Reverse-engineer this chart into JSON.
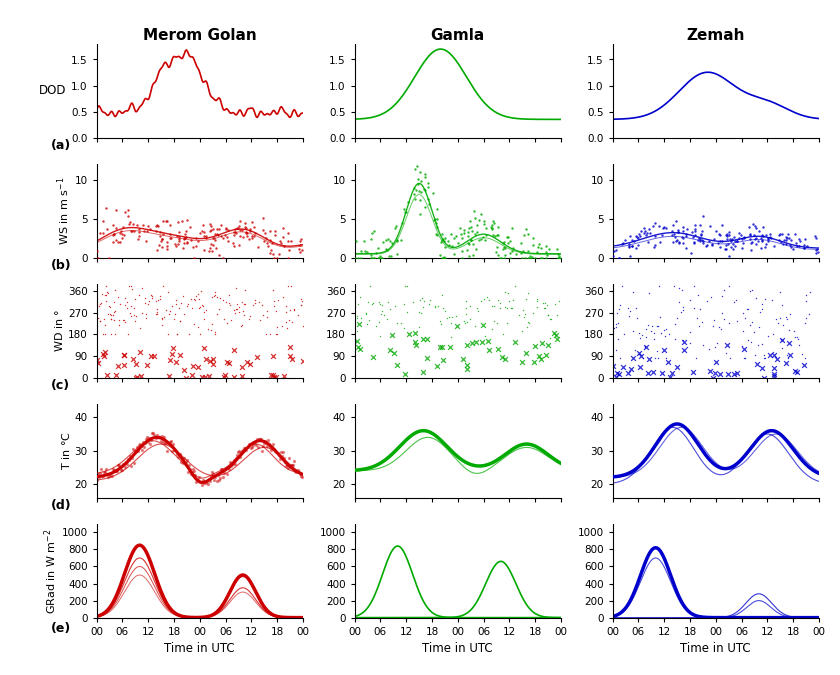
{
  "title_col1": "Merom Golan",
  "title_col2": "Gamla",
  "title_col3": "Zemah",
  "colors_hex": [
    "#cc0000",
    "#00aa00",
    "#0000cc"
  ],
  "row_labels": [
    "(a)",
    "(b)",
    "(c)",
    "(d)",
    "(e)"
  ],
  "ylabel_row0": "DOD",
  "ylabel_row1": "WS in m s$^{-1}$",
  "ylabel_row2": "WD in $\\degree$",
  "ylabel_row3": "T in $\\degree$C",
  "ylabel_row4": "GRad in W m$^{-2}$",
  "xlabel": "Time in UTC",
  "xtick_labels": [
    "00",
    "06",
    "12",
    "18",
    "00",
    "06",
    "12",
    "18",
    "00"
  ],
  "dod_ylim": [
    0,
    1.8
  ],
  "dod_yticks": [
    0,
    0.5,
    1.0,
    1.5
  ],
  "ws_ylim": [
    0,
    12
  ],
  "ws_yticks": [
    0,
    5,
    10
  ],
  "wd_ylim": [
    0,
    390
  ],
  "wd_yticks": [
    0,
    90,
    180,
    270,
    360
  ],
  "temp_ylim": [
    16,
    44
  ],
  "temp_yticks": [
    20,
    30,
    40
  ],
  "grad_ylim": [
    0,
    1100
  ],
  "grad_yticks": [
    0,
    200,
    400,
    600,
    800,
    1000
  ]
}
